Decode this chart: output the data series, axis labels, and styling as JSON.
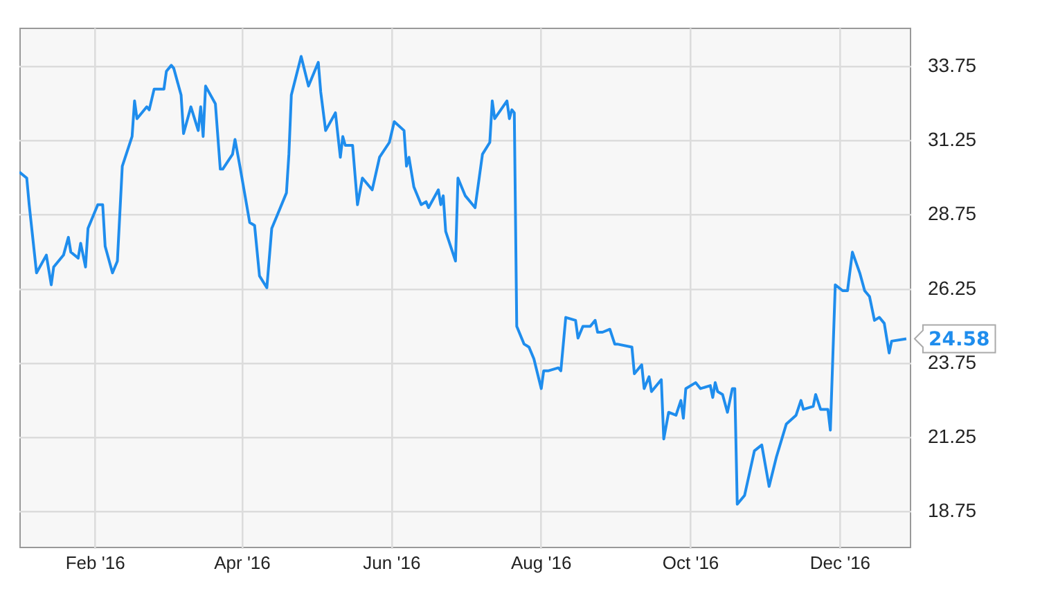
{
  "chart_data": {
    "type": "line",
    "x": [
      "2016-01-01",
      "2016-01-04",
      "2016-01-05",
      "2016-01-08",
      "2016-01-12",
      "2016-01-14",
      "2016-01-15",
      "2016-01-19",
      "2016-01-21",
      "2016-01-22",
      "2016-01-25",
      "2016-01-26",
      "2016-01-28",
      "2016-01-29",
      "2016-02-02",
      "2016-02-04",
      "2016-02-05",
      "2016-02-08",
      "2016-02-10",
      "2016-02-12",
      "2016-02-16",
      "2016-02-17",
      "2016-02-18",
      "2016-02-22",
      "2016-02-23",
      "2016-02-25",
      "2016-02-29",
      "2016-03-01",
      "2016-03-03",
      "2016-03-04",
      "2016-03-07",
      "2016-03-08",
      "2016-03-11",
      "2016-03-14",
      "2016-03-15",
      "2016-03-16",
      "2016-03-17",
      "2016-03-21",
      "2016-03-23",
      "2016-03-24",
      "2016-03-28",
      "2016-03-29",
      "2016-03-31",
      "2016-04-04",
      "2016-04-06",
      "2016-04-08",
      "2016-04-11",
      "2016-04-13",
      "2016-04-15",
      "2016-04-19",
      "2016-04-20",
      "2016-04-21",
      "2016-04-25",
      "2016-04-28",
      "2016-05-02",
      "2016-05-03",
      "2016-05-05",
      "2016-05-09",
      "2016-05-11",
      "2016-05-12",
      "2016-05-13",
      "2016-05-16",
      "2016-05-18",
      "2016-05-20",
      "2016-05-24",
      "2016-05-27",
      "2016-05-31",
      "2016-06-02",
      "2016-06-06",
      "2016-06-07",
      "2016-06-08",
      "2016-06-10",
      "2016-06-13",
      "2016-06-15",
      "2016-06-16",
      "2016-06-20",
      "2016-06-21",
      "2016-06-22",
      "2016-06-23",
      "2016-06-27",
      "2016-06-28",
      "2016-07-01",
      "2016-07-05",
      "2016-07-08",
      "2016-07-11",
      "2016-07-12",
      "2016-07-13",
      "2016-07-18",
      "2016-07-19",
      "2016-07-20",
      "2016-07-21",
      "2016-07-22",
      "2016-07-25",
      "2016-07-27",
      "2016-07-28",
      "2016-07-29",
      "2016-08-01",
      "2016-08-02",
      "2016-08-04",
      "2016-08-08",
      "2016-08-09",
      "2016-08-11",
      "2016-08-15",
      "2016-08-16",
      "2016-08-18",
      "2016-08-21",
      "2016-08-23",
      "2016-08-24",
      "2016-08-26",
      "2016-08-29",
      "2016-08-31",
      "2016-09-01",
      "2016-09-07",
      "2016-09-08",
      "2016-09-11",
      "2016-09-12",
      "2016-09-14",
      "2016-09-15",
      "2016-09-19",
      "2016-09-20",
      "2016-09-22",
      "2016-09-25",
      "2016-09-27",
      "2016-09-28",
      "2016-09-29",
      "2016-10-03",
      "2016-10-05",
      "2016-10-09",
      "2016-10-10",
      "2016-10-11",
      "2016-10-12",
      "2016-10-14",
      "2016-10-16",
      "2016-10-18",
      "2016-10-19",
      "2016-10-20",
      "2016-10-23",
      "2016-10-27",
      "2016-10-30",
      "2016-11-02",
      "2016-11-05",
      "2016-11-09",
      "2016-11-13",
      "2016-11-15",
      "2016-11-16",
      "2016-11-20",
      "2016-11-21",
      "2016-11-23",
      "2016-11-26",
      "2016-11-27",
      "2016-11-29",
      "2016-12-02",
      "2016-12-04",
      "2016-12-06",
      "2016-12-09",
      "2016-12-11",
      "2016-12-13",
      "2016-12-15",
      "2016-12-17",
      "2016-12-19",
      "2016-12-21",
      "2016-12-22",
      "2016-12-28"
    ],
    "series": [
      {
        "color": "#1f8ded",
        "values": [
          30.2,
          30.0,
          29.1,
          26.8,
          27.4,
          26.4,
          27.0,
          27.4,
          28.0,
          27.5,
          27.3,
          27.8,
          27.0,
          28.3,
          29.1,
          29.1,
          27.7,
          26.8,
          27.2,
          30.4,
          31.4,
          32.6,
          32.0,
          32.4,
          32.3,
          33.0,
          33.0,
          33.6,
          33.8,
          33.7,
          32.8,
          31.5,
          32.4,
          31.6,
          32.4,
          31.4,
          33.1,
          32.5,
          30.3,
          30.3,
          30.8,
          31.3,
          30.4,
          28.5,
          28.4,
          26.7,
          26.3,
          28.3,
          28.7,
          29.5,
          30.8,
          32.8,
          34.1,
          33.1,
          33.9,
          32.9,
          31.6,
          32.2,
          30.7,
          31.4,
          31.1,
          31.1,
          29.1,
          30.0,
          29.6,
          30.7,
          31.2,
          31.9,
          31.6,
          30.4,
          30.7,
          29.7,
          29.1,
          29.2,
          29.0,
          29.6,
          29.1,
          29.4,
          28.2,
          27.2,
          30.0,
          29.4,
          29.0,
          30.8,
          31.2,
          32.6,
          32.0,
          32.6,
          32.0,
          32.3,
          32.2,
          25.0,
          24.4,
          24.3,
          24.1,
          23.9,
          22.9,
          23.5,
          23.5,
          23.6,
          23.5,
          25.3,
          25.2,
          24.6,
          25.0,
          25.0,
          25.2,
          24.8,
          24.8,
          24.9,
          24.4,
          24.4,
          24.3,
          23.4,
          23.7,
          22.9,
          23.3,
          22.8,
          23.2,
          21.2,
          22.1,
          22.0,
          22.5,
          21.9,
          22.9,
          23.1,
          22.9,
          23.0,
          22.6,
          23.1,
          22.8,
          22.7,
          22.1,
          22.9,
          22.9,
          19.0,
          19.3,
          20.8,
          21.0,
          19.6,
          20.6,
          21.7,
          22.0,
          22.5,
          22.2,
          22.3,
          22.7,
          22.2,
          22.2,
          21.5,
          26.4,
          26.2,
          26.2,
          27.5,
          26.8,
          26.2,
          26.0,
          25.2,
          25.3,
          25.1,
          24.1,
          24.5,
          24.58
        ]
      }
    ],
    "xlim": [
      "2016-01-01",
      "2016-12-30"
    ],
    "xticks": [
      {
        "value": "2016-02-01",
        "label": "Feb '16"
      },
      {
        "value": "2016-04-01",
        "label": "Apr '16"
      },
      {
        "value": "2016-06-01",
        "label": "Jun '16"
      },
      {
        "value": "2016-08-01",
        "label": "Aug '16"
      },
      {
        "value": "2016-10-01",
        "label": "Oct '16"
      },
      {
        "value": "2016-12-01",
        "label": "Dec '16"
      }
    ],
    "ylim": [
      17.5,
      35.05
    ],
    "yticks": [
      18.75,
      21.25,
      23.75,
      26.25,
      28.75,
      31.25,
      33.75
    ],
    "annotations": [
      {
        "text": "24.58",
        "x": "2016-12-28",
        "y": 24.58
      }
    ],
    "grid": true,
    "legend": false,
    "marker": "none",
    "line_style": "solid"
  }
}
